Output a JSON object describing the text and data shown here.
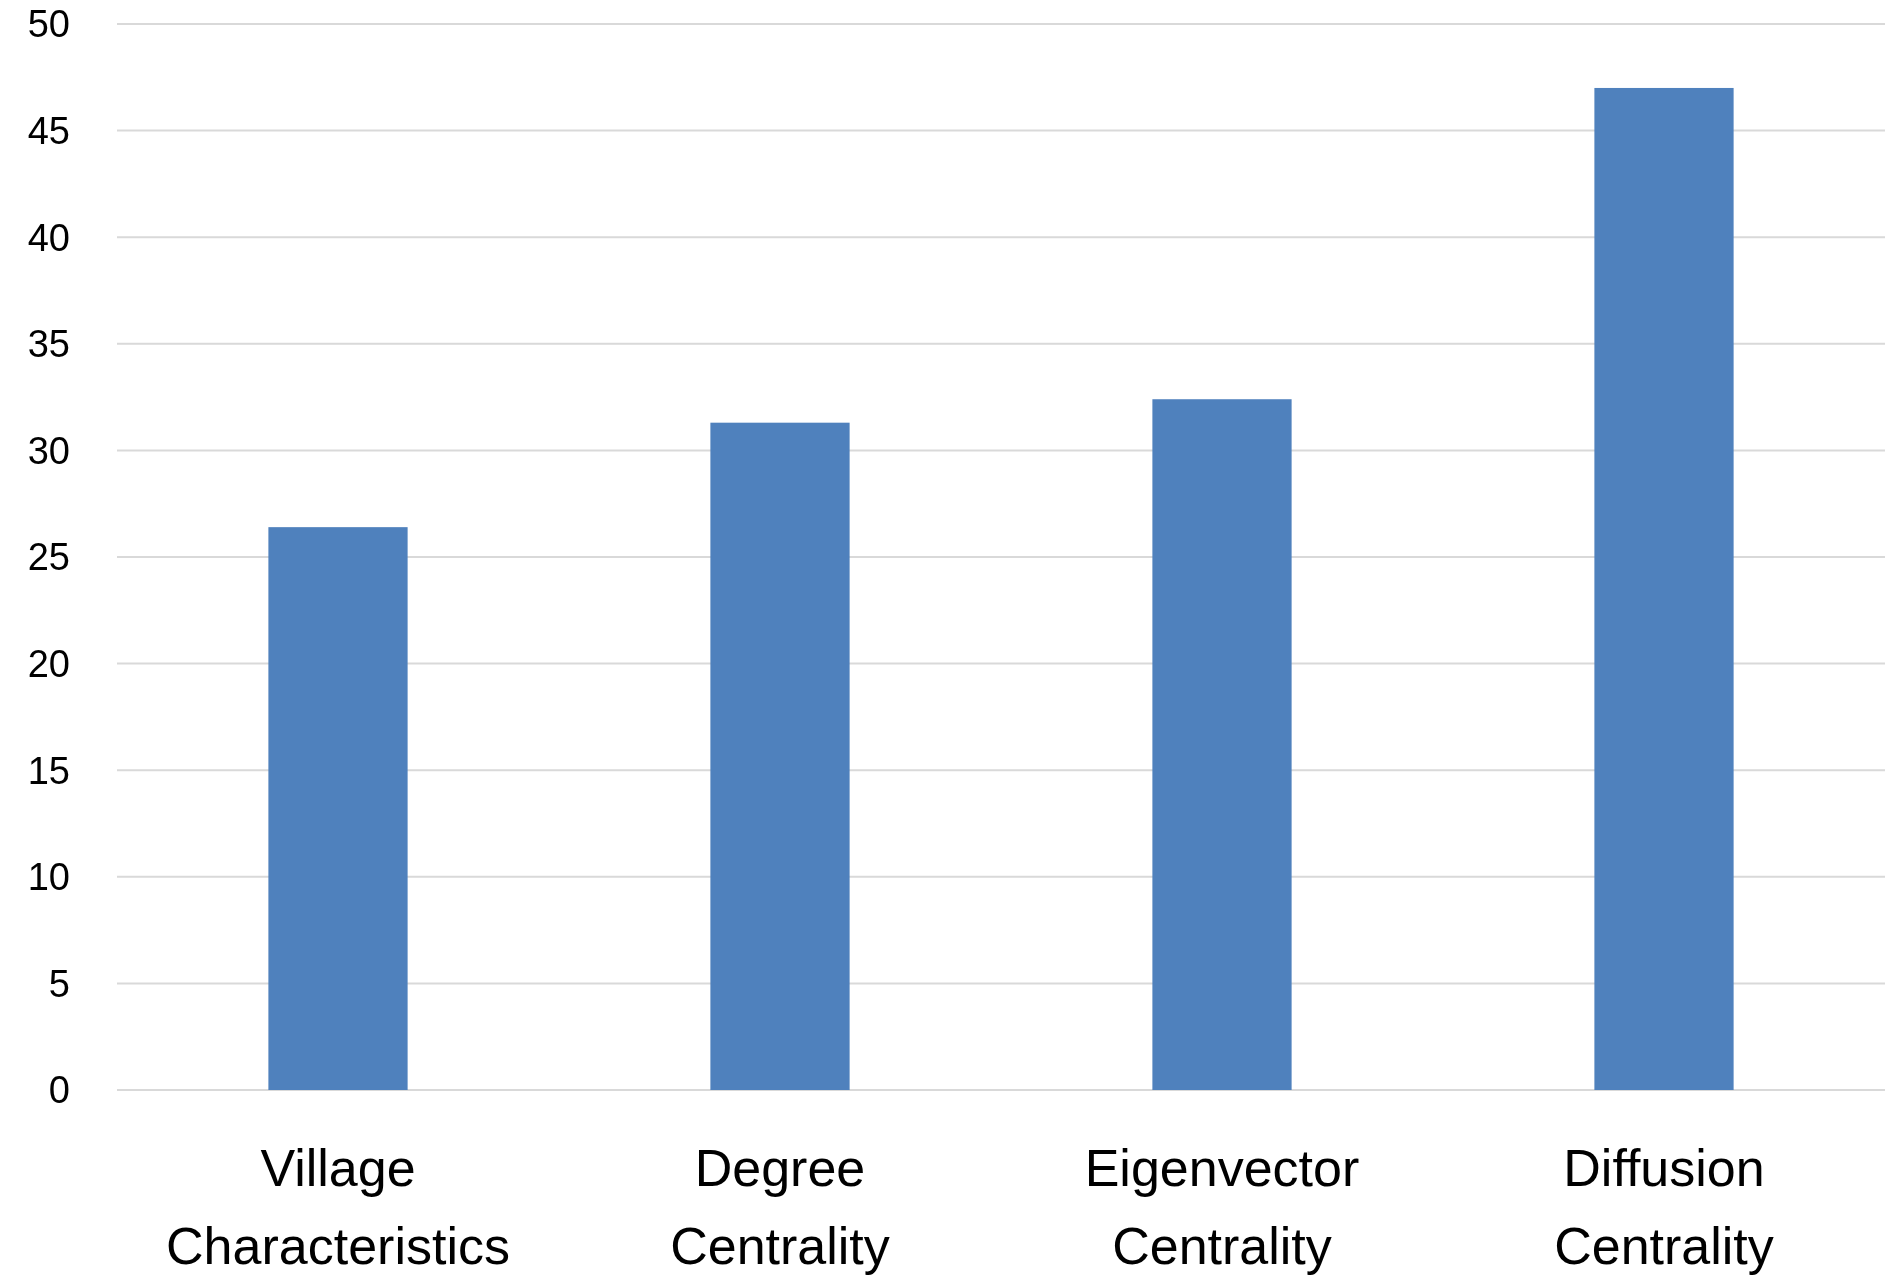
{
  "chart_data": {
    "type": "bar",
    "categories": [
      "Village Characteristics",
      "Degree Centrality",
      "Eigenvector Centrality",
      "Diffusion Centrality"
    ],
    "values": [
      26.4,
      31.3,
      32.4,
      47
    ],
    "color": "#4f81bd",
    "ylim": [
      0,
      50
    ],
    "yticks": [
      0,
      5,
      10,
      15,
      20,
      25,
      30,
      35,
      40,
      45,
      50
    ],
    "grid": "y"
  }
}
